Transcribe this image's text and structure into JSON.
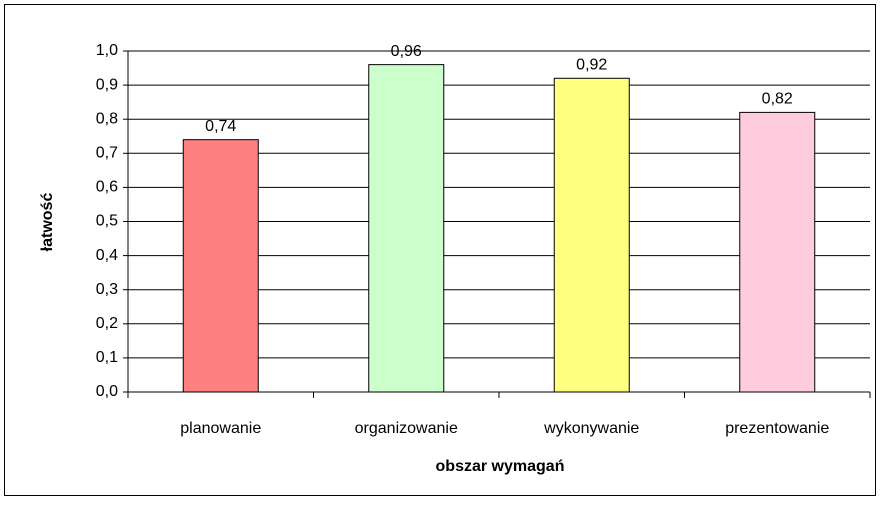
{
  "chart_data": {
    "type": "bar",
    "x_label": "obszar wymagań",
    "y_label": "łatwość",
    "categories": [
      "planowanie",
      "organizowanie",
      "wykonywanie",
      "prezentowanie"
    ],
    "values": [
      0.74,
      0.96,
      0.92,
      0.82
    ],
    "value_labels": [
      "0,74",
      "0,96",
      "0,92",
      "0,82"
    ],
    "colors": [
      "#ff8080",
      "#ccffcc",
      "#ffff80",
      "#ffccdd"
    ],
    "ylim": [
      0,
      1
    ],
    "yticks": [
      {
        "value": 0,
        "label": "0,0"
      },
      {
        "value": 0.1,
        "label": "0,1"
      },
      {
        "value": 0.2,
        "label": "0,2"
      },
      {
        "value": 0.3,
        "label": "0,3"
      },
      {
        "value": 0.4,
        "label": "0,4"
      },
      {
        "value": 0.5,
        "label": "0,5"
      },
      {
        "value": 0.6,
        "label": "0,6"
      },
      {
        "value": 0.7,
        "label": "0,7"
      },
      {
        "value": 0.8,
        "label": "0,8"
      },
      {
        "value": 0.9,
        "label": "0,9"
      },
      {
        "value": 1,
        "label": "1,0"
      }
    ],
    "grid": true
  }
}
